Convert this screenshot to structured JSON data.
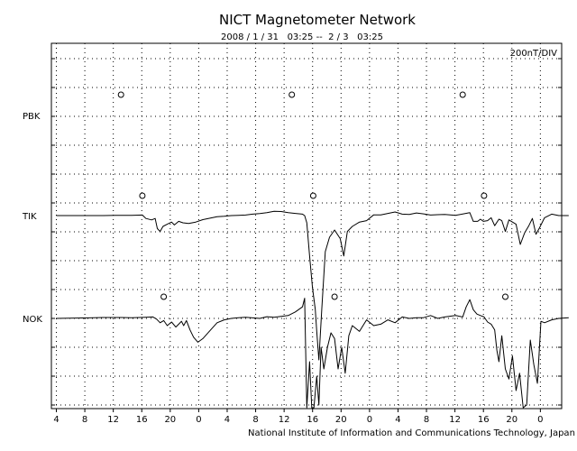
{
  "chart_data": {
    "type": "line",
    "title": "NICT Magnetometer Network",
    "subtitle": "2008 / 1 / 31   03:25 --  2 / 3   03:25",
    "scale_label": "200nT/DIV",
    "footer": "National Institute of Information and Communications Technology, Japan",
    "x_tick_labels": [
      "4",
      "8",
      "12",
      "16",
      "20",
      "0",
      "4",
      "8",
      "12",
      "16",
      "20",
      "0",
      "4",
      "8",
      "12",
      "16",
      "20",
      "0"
    ],
    "x_start_hour": 3.4167,
    "x_range_hours": 72,
    "stations": [
      "PBK",
      "TIK",
      "NOK"
    ],
    "grid": true,
    "series": [
      {
        "name": "PBK",
        "x_hours": [],
        "values": [],
        "midnight_marks_hours": [
          12.5,
          36.5,
          60.5
        ]
      },
      {
        "name": "TIK",
        "x_hours": [
          3.4,
          8,
          10,
          12.5,
          14,
          15.5,
          16.0,
          16.8,
          17.3,
          17.6,
          18.0,
          18.4,
          19.0,
          19.6,
          20.0,
          20.6,
          21.2,
          22.0,
          23.0,
          24.0,
          25.0,
          26.0,
          27.0,
          28.0,
          29.0,
          30.0,
          31.0,
          32.0,
          33.0,
          34.0,
          35.0,
          36.0,
          37.0,
          38.0,
          38.3,
          38.6,
          39.0,
          39.4,
          39.8,
          40.0,
          40.3,
          40.7,
          41.2,
          41.8,
          42.5,
          43.3,
          43.8,
          44.3,
          45.0,
          46.0,
          47.0,
          48.0,
          49.0,
          50.0,
          51.0,
          52.0,
          53.0,
          54.0,
          55.0,
          56.0,
          57.0,
          58.0,
          59.5,
          61.5,
          62.0,
          62.6,
          63.0,
          63.4,
          64.0,
          64.5,
          65.0,
          65.6,
          66.0,
          66.5,
          67.0,
          67.5,
          68.0,
          68.6,
          69.2,
          69.8,
          70.3,
          70.8,
          71.3,
          72.0,
          73.0,
          74.0,
          75.4
        ],
        "values": [
          0,
          0,
          0,
          2,
          2,
          4,
          -20,
          -30,
          -20,
          -90,
          -110,
          -75,
          -60,
          -45,
          -65,
          -40,
          -50,
          -55,
          -45,
          -28,
          -18,
          -8,
          -5,
          0,
          2,
          4,
          10,
          14,
          20,
          30,
          28,
          20,
          15,
          10,
          0,
          -50,
          -280,
          -500,
          -650,
          -800,
          -1000,
          -650,
          -250,
          -150,
          -100,
          -160,
          -280,
          -110,
          -75,
          -45,
          -35,
          5,
          5,
          15,
          25,
          10,
          8,
          18,
          12,
          4,
          6,
          8,
          2,
          20,
          -40,
          -40,
          -25,
          -40,
          -35,
          -15,
          -70,
          -25,
          -35,
          -110,
          -30,
          -45,
          -60,
          -200,
          -120,
          -70,
          -20,
          -130,
          -85,
          -15,
          10,
          0,
          0
        ]
      },
      {
        "name": "NOK",
        "x_hours": [
          3.4,
          8,
          10,
          12.5,
          14,
          16.0,
          17.0,
          17.5,
          18.0,
          18.5,
          19.0,
          19.6,
          20.2,
          20.7,
          21.0,
          21.3,
          21.7,
          22.2,
          22.7,
          23.3,
          24.0,
          25.0,
          26.0,
          27.0,
          28.0,
          29.0,
          30.0,
          31.0,
          32.0,
          33.0,
          34.0,
          35.0,
          36.0,
          37.0,
          38.0,
          38.3,
          38.6,
          39.0,
          39.3,
          39.6,
          40.0,
          40.3,
          40.6,
          41.0,
          41.5,
          42.0,
          42.5,
          43.0,
          43.5,
          44.0,
          44.5,
          45.0,
          46.0,
          47.0,
          48.0,
          49.0,
          50.0,
          51.0,
          52.0,
          53.0,
          54.0,
          55.0,
          56.0,
          57.0,
          58.0,
          59.5,
          60.5,
          61.0,
          61.5,
          62.0,
          62.5,
          63.0,
          63.5,
          64.0,
          64.5,
          65.0,
          65.3,
          65.6,
          66.0,
          66.5,
          67.0,
          67.5,
          68.0,
          68.5,
          69.0,
          69.5,
          70.0,
          70.5,
          71.0,
          71.5,
          72.0,
          73.0,
          74.0,
          75.4
        ],
        "values": [
          0,
          4,
          6,
          6,
          5,
          8,
          10,
          -5,
          -30,
          -15,
          -50,
          -25,
          -60,
          -35,
          -20,
          -50,
          -15,
          -80,
          -130,
          -165,
          -140,
          -85,
          -30,
          -10,
          0,
          5,
          8,
          4,
          0,
          12,
          8,
          14,
          20,
          45,
          80,
          140,
          -700,
          -300,
          -800,
          -1000,
          -400,
          -600,
          -200,
          -350,
          -200,
          -100,
          -140,
          -350,
          -200,
          -380,
          -120,
          -50,
          -90,
          -10,
          -50,
          -40,
          -10,
          -30,
          10,
          0,
          5,
          5,
          20,
          0,
          10,
          20,
          10,
          80,
          130,
          60,
          30,
          20,
          10,
          -25,
          -40,
          -80,
          -220,
          -300,
          -120,
          -350,
          -420,
          -260,
          -500,
          -380,
          -800,
          -600,
          -150,
          -320,
          -450,
          -20,
          -30,
          -10,
          0,
          5
        ]
      }
    ],
    "midnight_marks_hours": {
      "TIK": [
        15.5,
        39.5,
        63.5
      ],
      "NOK": [
        18.5,
        42.5,
        66.5
      ]
    }
  }
}
